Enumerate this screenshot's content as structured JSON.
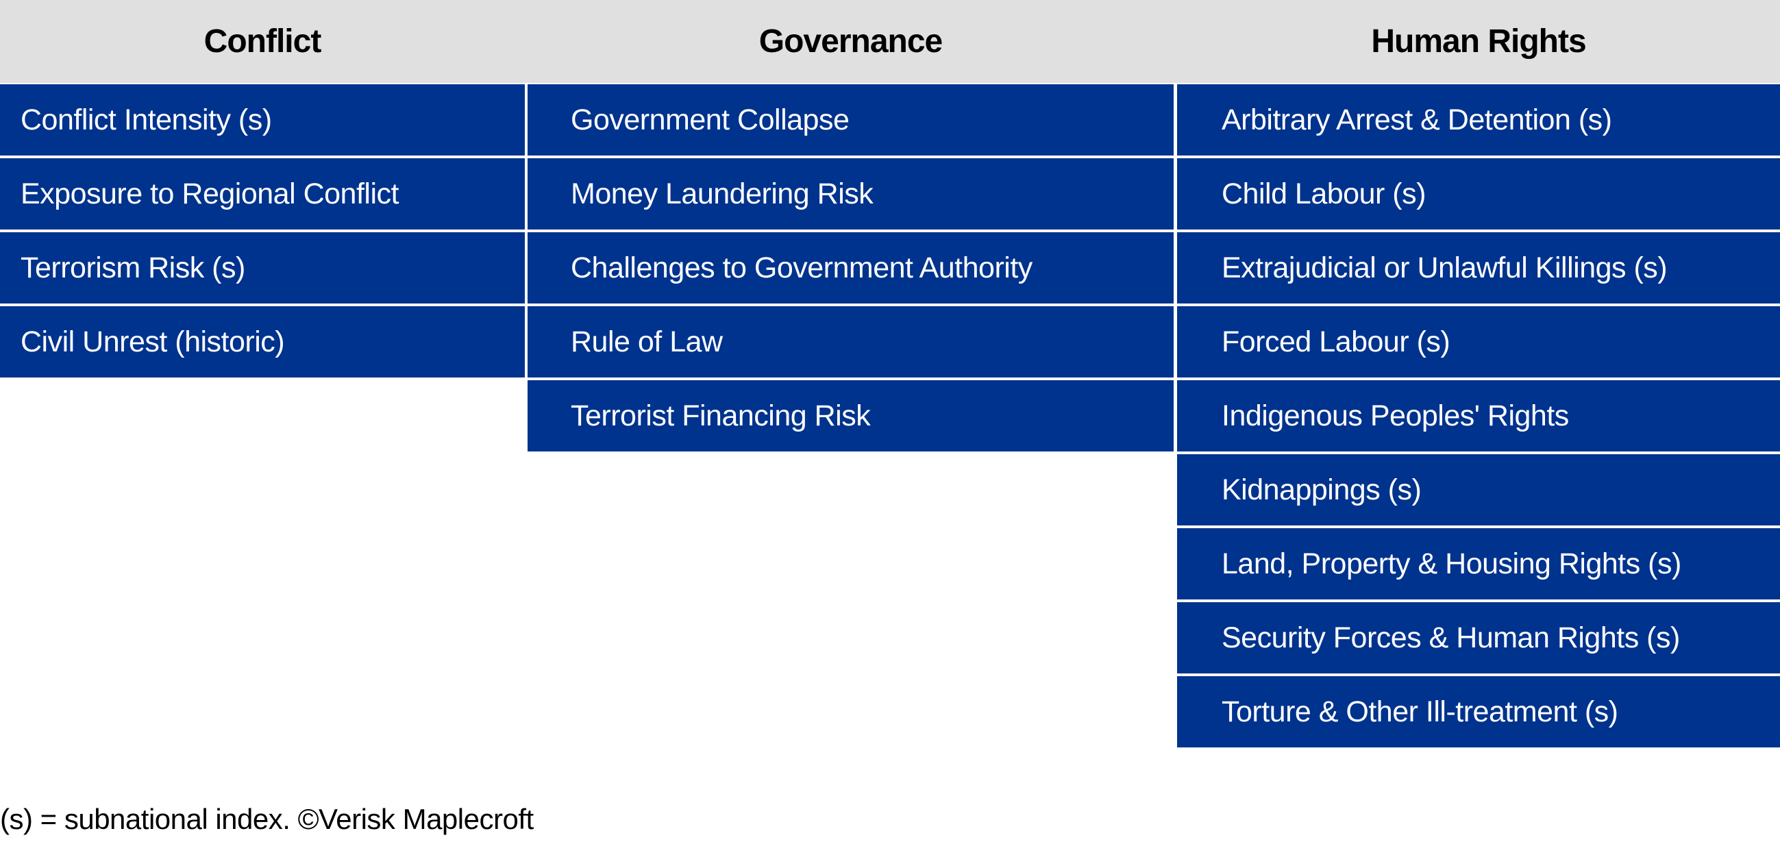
{
  "columns": [
    {
      "header": "Conflict",
      "items": [
        "Conflict Intensity (s)",
        "Exposure to Regional Conflict",
        "Terrorism Risk (s)",
        "Civil Unrest (historic)"
      ]
    },
    {
      "header": "Governance",
      "items": [
        "Government Collapse",
        "Money Laundering Risk",
        "Challenges to Government Authority",
        "Rule of Law",
        "Terrorist Financing Risk"
      ]
    },
    {
      "header": "Human Rights",
      "items": [
        "Arbitrary Arrest & Detention (s)",
        "Child Labour (s)",
        "Extrajudicial or Unlawful Killings (s)",
        "Forced Labour (s)",
        "Indigenous Peoples' Rights",
        "Kidnappings (s)",
        "Land, Property & Housing Rights (s)",
        "Security Forces & Human Rights (s)",
        "Torture & Other Ill-treatment (s)"
      ]
    }
  ],
  "footnote": "(s) = subnational index. ©Verisk Maplecroft"
}
